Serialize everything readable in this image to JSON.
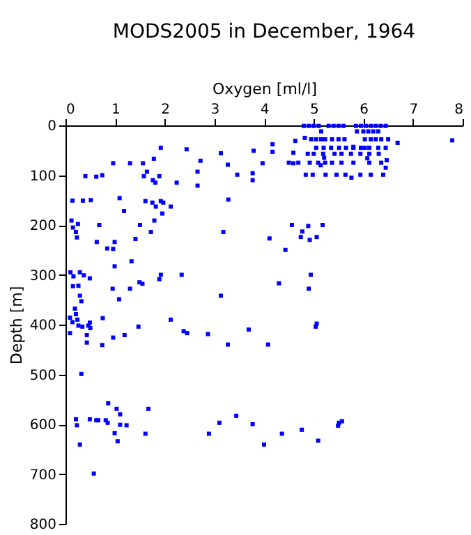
{
  "chart_data": {
    "type": "scatter",
    "title": "MODS2005 in December, 1964",
    "xlabel": "Oxygen [ml/l]",
    "ylabel": "Depth [m]",
    "xlim": [
      0,
      8
    ],
    "xticks": [
      0,
      1,
      2,
      3,
      4,
      5,
      6,
      7,
      8
    ],
    "ylim": [
      800,
      0
    ],
    "yticks": [
      0,
      100,
      200,
      300,
      400,
      500,
      600,
      700,
      800
    ],
    "grid": false,
    "marker": "square",
    "series": [
      {
        "color": "#0000ff",
        "x": [
          4.8,
          4.9,
          5.0,
          5.1,
          5.3,
          5.4,
          5.5,
          5.6,
          5.85,
          5.95,
          6.05,
          6.15,
          6.25,
          6.35,
          6.45,
          5.15,
          5.87,
          6.0,
          6.1,
          6.2,
          6.3,
          4.63,
          4.82,
          4.95,
          5.05,
          5.15,
          5.23,
          5.37,
          5.5,
          5.62,
          6.03,
          6.15,
          6.25,
          6.36,
          6.5,
          6.69,
          7.79,
          4.17,
          5.8,
          5.05,
          5.2,
          5.35,
          5.51,
          5.65,
          5.8,
          5.95,
          6.03,
          6.12,
          6.3,
          6.45,
          4.59,
          4.88,
          5.0,
          5.19,
          5.42,
          5.56,
          5.75,
          5.94,
          6.12,
          6.31,
          5.21,
          6.08,
          6.47,
          4.5,
          4.69,
          4.92,
          5.09,
          5.23,
          5.37,
          5.56,
          5.8,
          6.12,
          6.36,
          6.45,
          5.14,
          4.84,
          4.98,
          5.24,
          5.46,
          5.64,
          5.94,
          6.15,
          6.4,
          5.76,
          1.92,
          2.44,
          0.96,
          1.3,
          1.56,
          1.78,
          2.72,
          3.13,
          3.27,
          3.79,
          4.17,
          3.97,
          4.59,
          0.4,
          0.62,
          0.74,
          1.64,
          1.58,
          1.89,
          1.76,
          1.81,
          2.24,
          2.66,
          2.66,
          3.46,
          3.77,
          3.77,
          0.14,
          0.35,
          0.51,
          1.09,
          1.18,
          1.61,
          1.75,
          1.82,
          1.92,
          1.97,
          2.12,
          1.95,
          3.28,
          0.12,
          0.15,
          0.25,
          0.21,
          0.23,
          0.68,
          0.63,
          0.99,
          0.84,
          0.96,
          1.5,
          1.79,
          1.72,
          1.41,
          3.18,
          4.11,
          4.43,
          4.56,
          4.89,
          4.77,
          4.74,
          4.92,
          5.06,
          5.18,
          0.99,
          1.33,
          0.1,
          0.16,
          0.29,
          0.37,
          0.49,
          0.15,
          0.26,
          0.29,
          0.32,
          0.95,
          1.08,
          1.3,
          1.49,
          1.55,
          1.92,
          1.89,
          2.34,
          3.13,
          4.3,
          4.94,
          4.9,
          0.19,
          0.21,
          0.09,
          0.14,
          0.24,
          0.26,
          0.34,
          0.49,
          0.46,
          0.5,
          0.75,
          0.09,
          0.43,
          0.43,
          0.74,
          0.96,
          1.19,
          1.47,
          2.12,
          2.38,
          2.45,
          2.87,
          3.27,
          3.69,
          4.08,
          5.04,
          5.06,
          0.32,
          0.21,
          0.23,
          0.29,
          0.49,
          0.62,
          0.66,
          0.81,
          0.85,
          0.86,
          1.03,
          1.1,
          1.1,
          1.23,
          0.99,
          1.05,
          0.57,
          1.61,
          1.67,
          2.89,
          3.1,
          3.44,
          3.77,
          4.0,
          4.36,
          4.76,
          5.09,
          5.49,
          5.51,
          5.57
        ],
        "values": [
          1,
          1,
          1,
          1,
          1,
          1,
          1,
          1,
          1,
          1,
          1,
          1,
          1,
          1,
          1,
          12,
          12,
          12,
          12,
          12,
          12,
          31,
          25,
          28,
          28,
          28,
          28,
          28,
          28,
          28,
          28,
          28,
          28,
          28,
          28,
          35,
          30,
          38,
          43,
          45,
          45,
          45,
          45,
          45,
          45,
          45,
          45,
          45,
          45,
          45,
          55,
          57,
          57,
          57,
          57,
          57,
          57,
          57,
          57,
          57,
          65,
          66,
          70,
          75,
          75,
          75,
          75,
          75,
          75,
          75,
          75,
          75,
          75,
          85,
          80,
          99,
          99,
          99,
          99,
          99,
          99,
          99,
          99,
          105,
          45,
          48,
          76,
          76,
          76,
          67,
          71,
          56,
          79,
          51,
          53,
          76,
          76,
          102,
          103,
          100,
          93,
          102,
          102,
          110,
          115,
          115,
          93,
          121,
          99,
          96,
          110,
          151,
          151,
          150,
          146,
          172,
          152,
          155,
          163,
          152,
          155,
          163,
          177,
          149,
          191,
          205,
          198,
          214,
          225,
          200,
          234,
          234,
          247,
          248,
          200,
          191,
          214,
          228,
          214,
          227,
          250,
          200,
          202,
          213,
          224,
          230,
          224,
          200,
          283,
          273,
          295,
          303,
          295,
          301,
          307,
          323,
          322,
          342,
          353,
          328,
          349,
          328,
          315,
          318,
          300,
          309,
          300,
          342,
          317,
          300,
          328,
          368,
          379,
          386,
          395,
          390,
          402,
          404,
          396,
          402,
          407,
          387,
          417,
          421,
          436,
          441,
          426,
          421,
          404,
          390,
          413,
          417,
          419,
          440,
          410,
          440,
          404,
          398,
          499,
          590,
          602,
          641,
          590,
          592,
          592,
          592,
          597,
          558,
          569,
          580,
          601,
          602,
          618,
          634,
          699,
          619,
          569,
          619,
          597,
          583,
          600,
          641,
          619,
          611,
          633,
          603,
          597,
          594
        ]
      }
    ]
  }
}
